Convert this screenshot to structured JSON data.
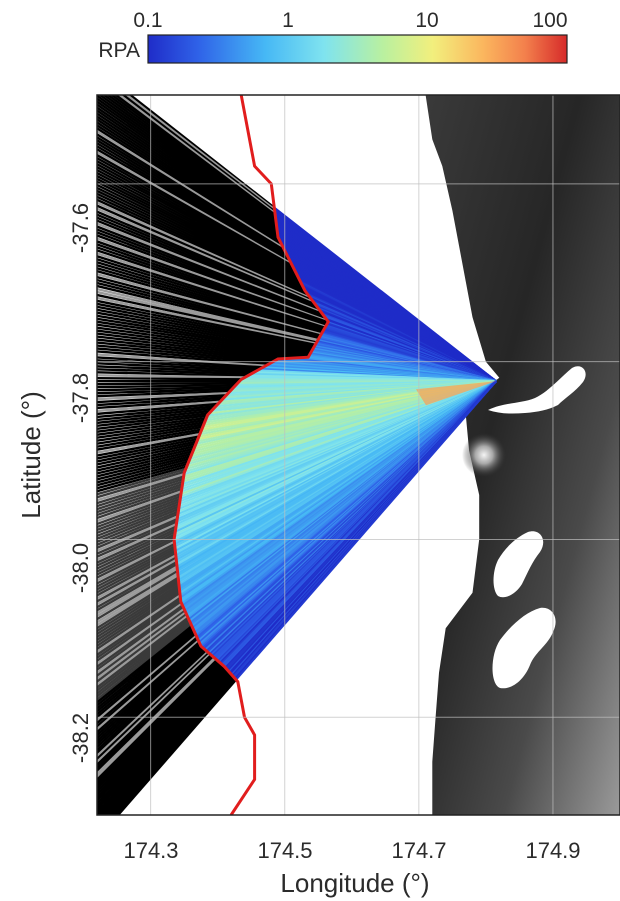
{
  "chart_data": {
    "type": "map",
    "xlabel": "Longitude (°)",
    "ylabel": "Latitude (°)",
    "xlim": [
      174.22,
      175.0
    ],
    "ylim": [
      -38.31,
      -37.5
    ],
    "x_ticks": [
      174.3,
      174.5,
      174.7,
      174.9
    ],
    "x_tick_labels": [
      "174.3",
      "174.5",
      "174.7",
      "174.9"
    ],
    "y_ticks": [
      -37.6,
      -37.8,
      -38.0,
      -38.2
    ],
    "y_tick_labels": [
      "-37.6",
      "-37.8",
      "-38.0",
      "-38.2"
    ],
    "grid": true,
    "colorbar": {
      "label": "RPA",
      "scale": "log",
      "range": [
        0.1,
        100
      ],
      "tick_labels": [
        "0.1",
        "1",
        "10",
        "100"
      ],
      "colormap": "jet"
    },
    "source_point": [
      174.815,
      -37.822
    ],
    "boundary_line": {
      "color": "#e11d1d",
      "points": [
        [
          174.435,
          -37.5
        ],
        [
          174.455,
          -37.58
        ],
        [
          174.48,
          -37.6
        ],
        [
          174.49,
          -37.66
        ],
        [
          174.53,
          -37.72
        ],
        [
          174.565,
          -37.755
        ],
        [
          174.535,
          -37.795
        ],
        [
          174.49,
          -37.797
        ],
        [
          174.435,
          -37.82
        ],
        [
          174.385,
          -37.86
        ],
        [
          174.35,
          -37.925
        ],
        [
          174.335,
          -38.0
        ],
        [
          174.345,
          -38.07
        ],
        [
          174.375,
          -38.12
        ],
        [
          174.41,
          -38.143
        ],
        [
          174.43,
          -38.16
        ],
        [
          174.44,
          -38.2
        ],
        [
          174.455,
          -38.22
        ],
        [
          174.455,
          -38.27
        ],
        [
          174.42,
          -38.31
        ]
      ]
    },
    "coastline": [
      [
        174.71,
        -37.5
      ],
      [
        174.72,
        -37.55
      ],
      [
        174.735,
        -37.58
      ],
      [
        174.75,
        -37.63
      ],
      [
        174.76,
        -37.67
      ],
      [
        174.77,
        -37.71
      ],
      [
        174.78,
        -37.75
      ],
      [
        174.8,
        -37.8
      ],
      [
        174.82,
        -37.818
      ],
      [
        174.8,
        -37.83
      ],
      [
        174.77,
        -37.86
      ],
      [
        174.775,
        -37.9
      ],
      [
        174.79,
        -37.95
      ],
      [
        174.79,
        -38.0
      ],
      [
        174.78,
        -38.06
      ],
      [
        174.74,
        -38.1
      ],
      [
        174.73,
        -38.15
      ],
      [
        174.725,
        -38.2
      ],
      [
        174.72,
        -38.25
      ],
      [
        174.72,
        -38.31
      ]
    ],
    "colors": {
      "boundary": "#e11d1d",
      "beyond_boundary_rays": "#000000",
      "terrain_dark": "#2a2a2a",
      "terrain_light": "#cfcfcf"
    }
  }
}
